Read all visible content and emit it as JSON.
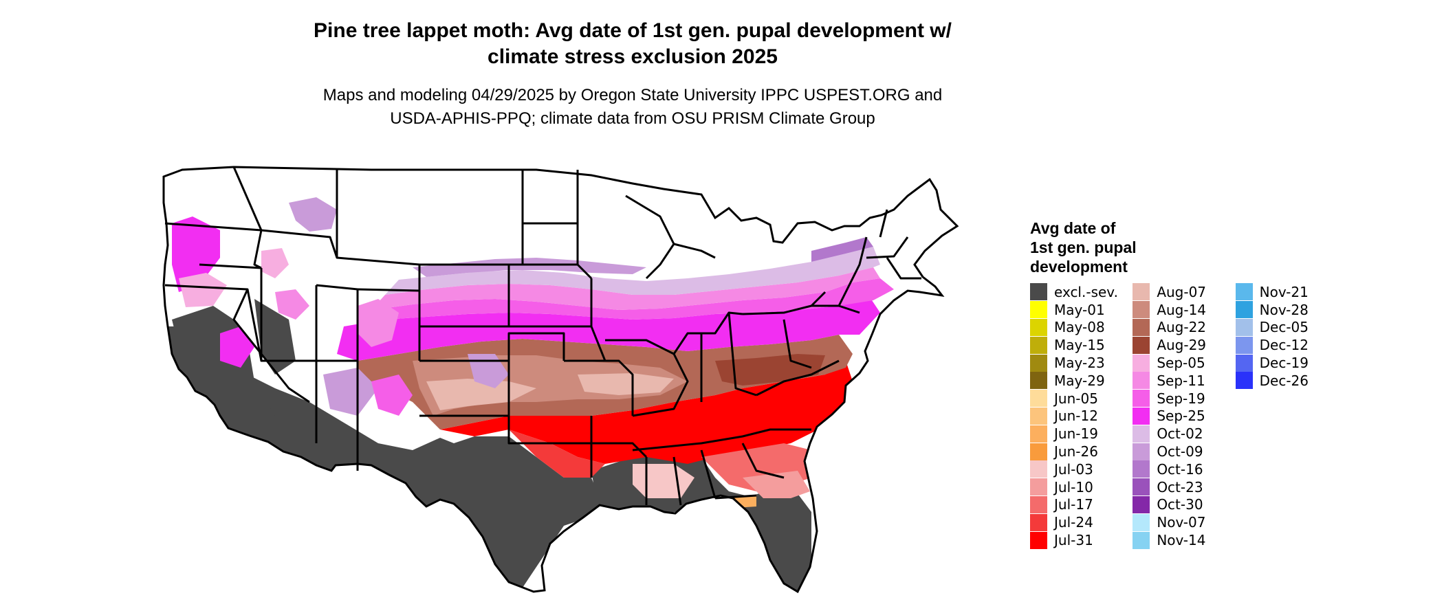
{
  "title_line1": "Pine tree lappet moth: Avg date of 1st gen. pupal development w/",
  "title_line2": "climate stress exclusion 2025",
  "subtitle_line1": "Maps and modeling 04/29/2025 by Oregon State University IPPC USPEST.ORG and",
  "subtitle_line2": "USDA-APHIS-PPQ; climate data from OSU PRISM Climate Group",
  "legend": {
    "title_line1": "Avg date of",
    "title_line2": "1st gen. pupal",
    "title_line3": "development",
    "col1": [
      {
        "label": "excl.-sev.",
        "color": "#4a4a4a"
      },
      {
        "label": "May-01",
        "color": "#ffff00"
      },
      {
        "label": "May-08",
        "color": "#dcd400"
      },
      {
        "label": "May-15",
        "color": "#bfae0a"
      },
      {
        "label": "May-23",
        "color": "#a08a10"
      },
      {
        "label": "May-29",
        "color": "#7f6410"
      },
      {
        "label": "Jun-05",
        "color": "#fedc9a"
      },
      {
        "label": "Jun-12",
        "color": "#fcc47c"
      },
      {
        "label": "Jun-19",
        "color": "#fcaf5e"
      },
      {
        "label": "Jun-26",
        "color": "#f99b3c"
      },
      {
        "label": "Jul-03",
        "color": "#f7c7c7"
      },
      {
        "label": "Jul-10",
        "color": "#f49d9d"
      },
      {
        "label": "Jul-17",
        "color": "#f46b6b"
      },
      {
        "label": "Jul-24",
        "color": "#f43a3a"
      },
      {
        "label": "Jul-31",
        "color": "#ff0000"
      }
    ],
    "col2": [
      {
        "label": "Aug-07",
        "color": "#e8b8ae"
      },
      {
        "label": "Aug-14",
        "color": "#cd8b7d"
      },
      {
        "label": "Aug-22",
        "color": "#b36856"
      },
      {
        "label": "Aug-29",
        "color": "#9b4432"
      },
      {
        "label": "Sep-05",
        "color": "#f7aee0"
      },
      {
        "label": "Sep-11",
        "color": "#f589e4"
      },
      {
        "label": "Sep-19",
        "color": "#f55ee8"
      },
      {
        "label": "Sep-25",
        "color": "#f22ef2"
      },
      {
        "label": "Oct-02",
        "color": "#dcbce6"
      },
      {
        "label": "Oct-09",
        "color": "#c99bd9"
      },
      {
        "label": "Oct-16",
        "color": "#b278cc"
      },
      {
        "label": "Oct-23",
        "color": "#9a52bb"
      },
      {
        "label": "Oct-30",
        "color": "#8428a8"
      },
      {
        "label": "Nov-07",
        "color": "#b4e8fc"
      },
      {
        "label": "Nov-14",
        "color": "#86d2f2"
      }
    ],
    "col3": [
      {
        "label": "Nov-21",
        "color": "#5ab8ec"
      },
      {
        "label": "Nov-28",
        "color": "#2ea2e0"
      },
      {
        "label": "Dec-05",
        "color": "#a2c0ea"
      },
      {
        "label": "Dec-12",
        "color": "#7c96ee"
      },
      {
        "label": "Dec-19",
        "color": "#5466f2"
      },
      {
        "label": "Dec-26",
        "color": "#2a32fa"
      }
    ]
  }
}
